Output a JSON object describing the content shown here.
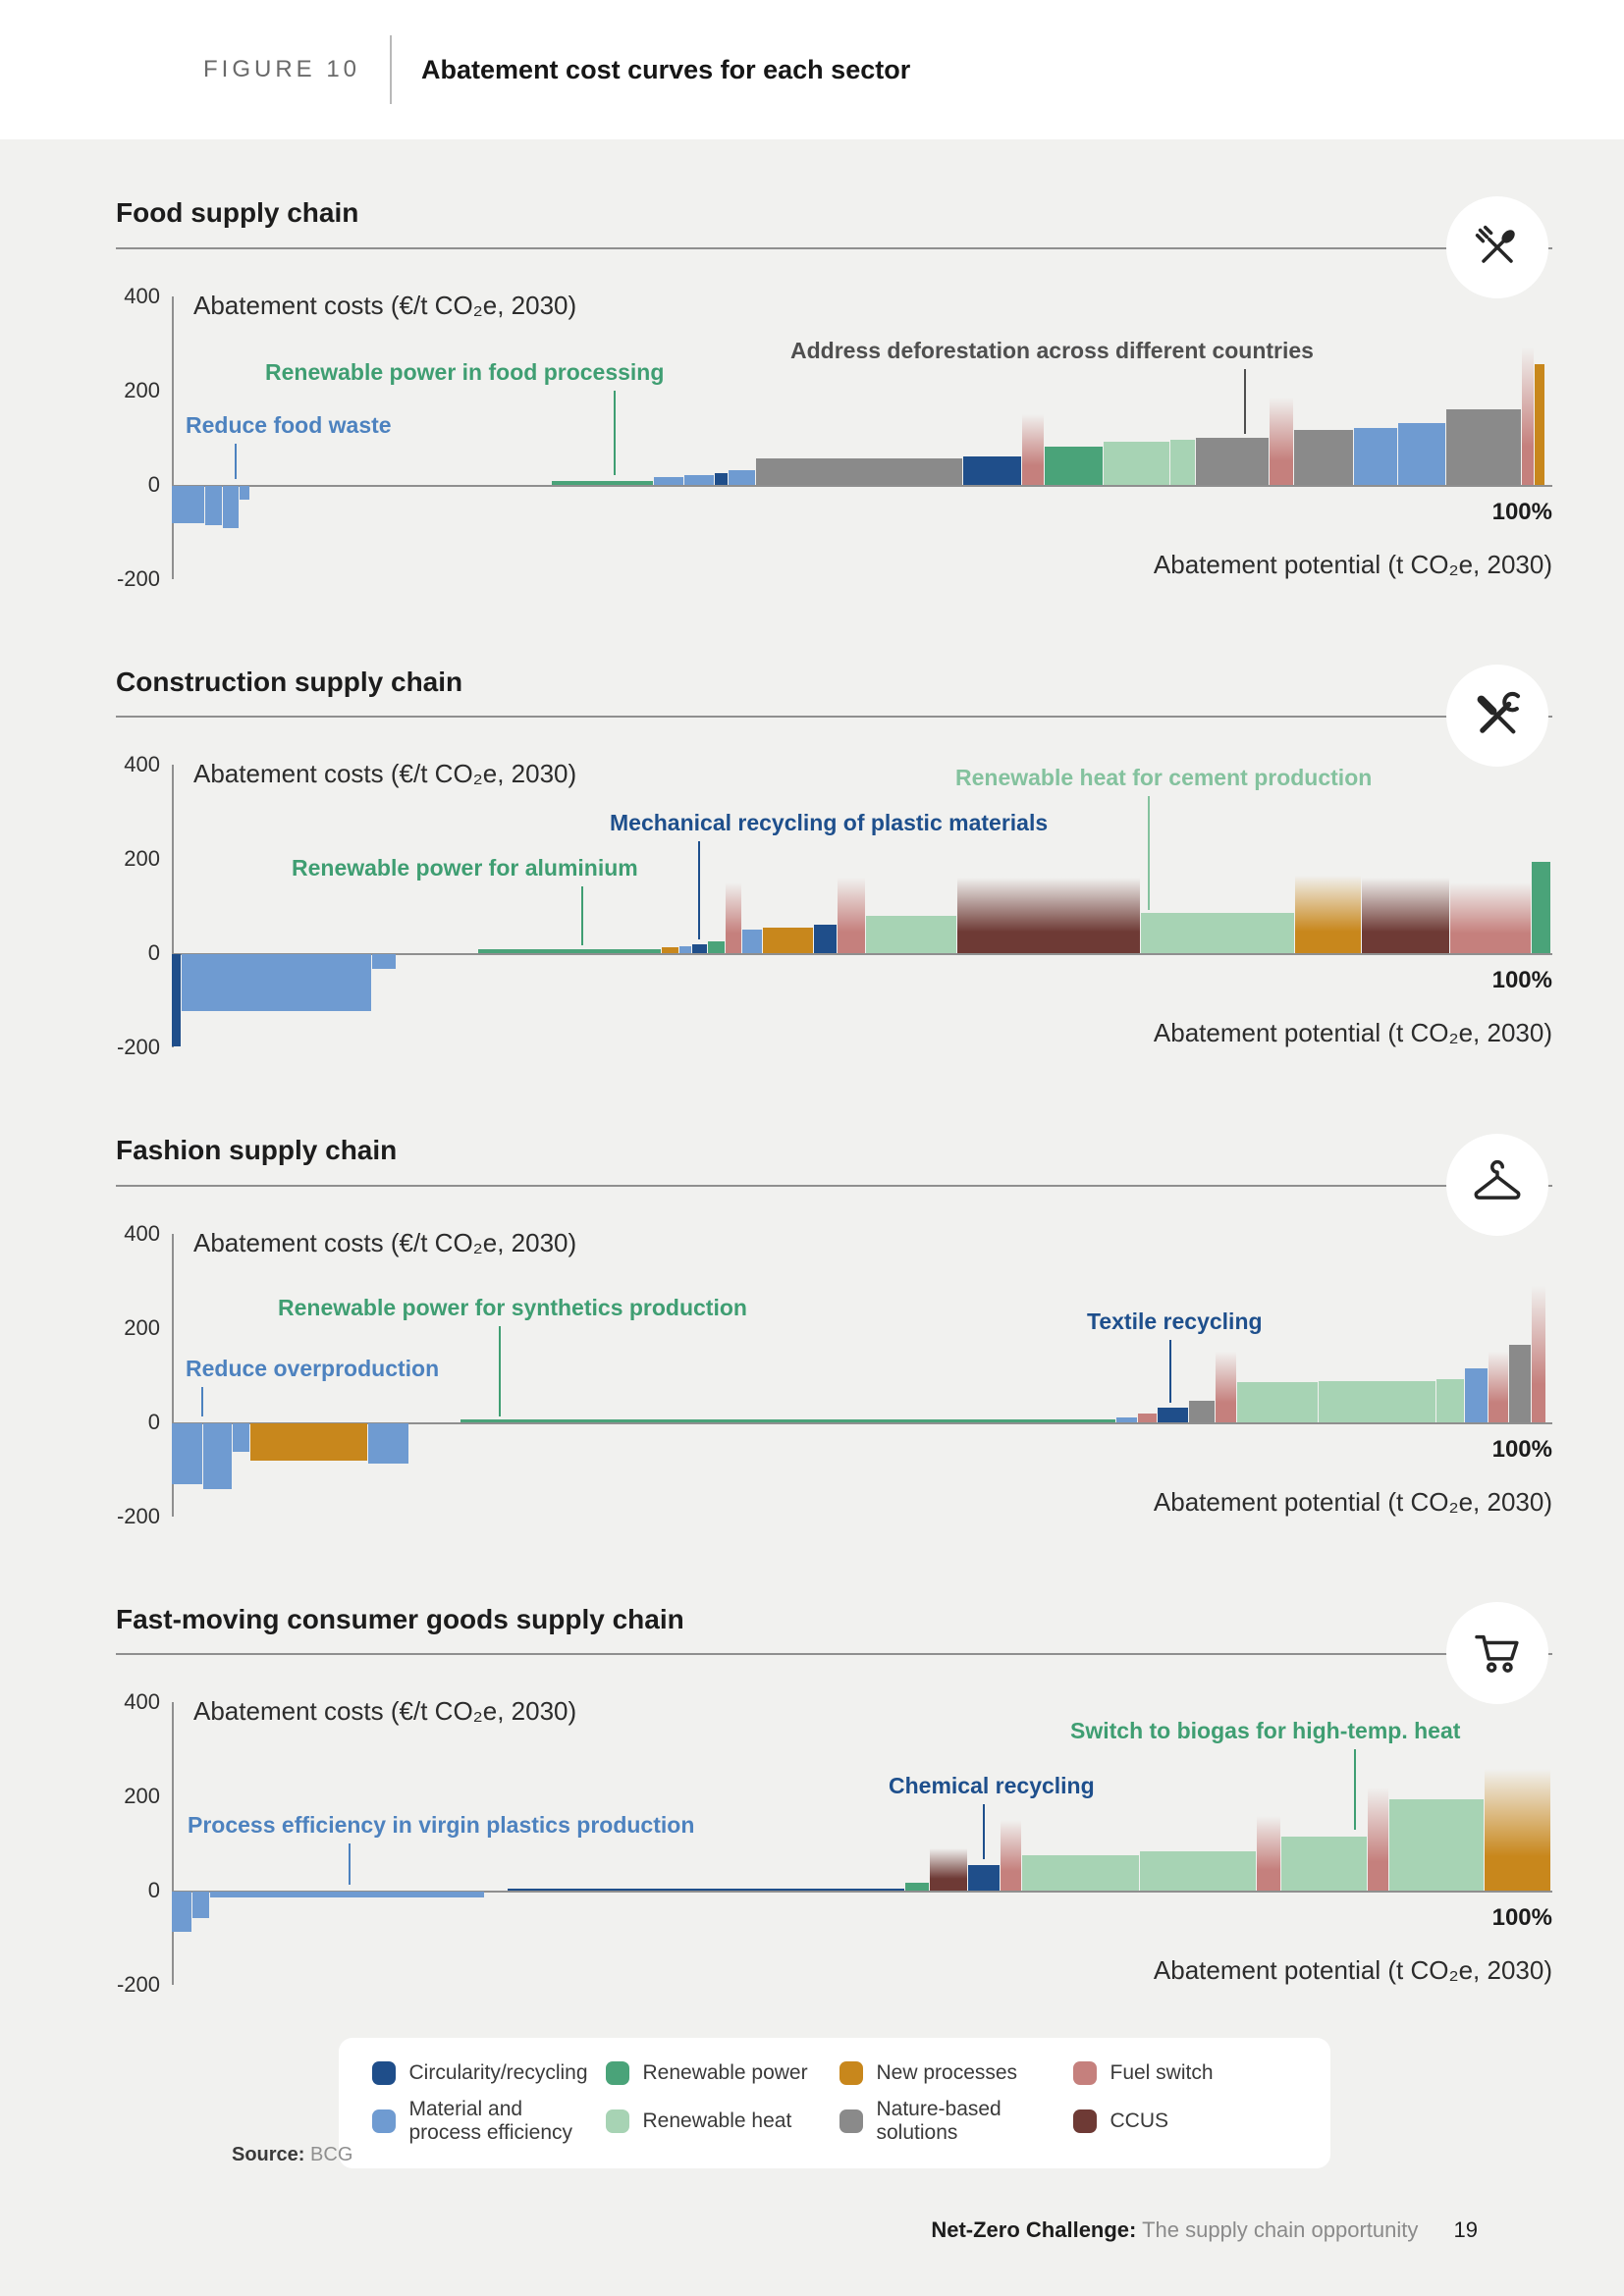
{
  "page": {
    "figure_label": "FIGURE 10",
    "figure_title": "Abatement cost curves for each sector",
    "source_label": "Source:",
    "source_value": "BCG",
    "footer_bold": "Net-Zero Challenge:",
    "footer_text": "The supply chain opportunity",
    "page_number": "19"
  },
  "axis": {
    "y_label": "Abatement costs (€/t CO₂e, 2030)",
    "x_label": "Abatement potential (t CO₂e, 2030)",
    "x_max": "100%",
    "y_ticks": [
      "400",
      "200",
      "0",
      "-200"
    ],
    "ylim": [
      -200,
      400
    ]
  },
  "colors": {
    "circ": "#1f4e8a",
    "matproc": "#6f9bd1",
    "renpower": "#4aa379",
    "renheat": "#a7d3b4",
    "newproc": "#c8871c",
    "nature": "#8a8a8a",
    "fuel": "#c5807d",
    "ccus": "#6e3a35"
  },
  "legend": {
    "items": [
      {
        "key": "circ",
        "label": "Circularity/recycling"
      },
      {
        "key": "renpower",
        "label": "Renewable power"
      },
      {
        "key": "newproc",
        "label": "New processes"
      },
      {
        "key": "fuel",
        "label": "Fuel switch"
      },
      {
        "key": "matproc",
        "label": "Material and\nprocess efficiency"
      },
      {
        "key": "renheat",
        "label": "Renewable heat"
      },
      {
        "key": "nature",
        "label": "Nature-based\nsolutions"
      },
      {
        "key": "ccus",
        "label": "CCUS"
      }
    ]
  },
  "chart_data": [
    {
      "type": "bar",
      "variant": "marginal-abatement-cost-curve",
      "title": "Food supply chain",
      "icon": "food-icon",
      "x_unit": "share of abatement potential (%)",
      "y_unit": "€/t CO₂e (2030)",
      "ylim": [
        -200,
        400
      ],
      "bars": [
        {
          "w": 2.4,
          "v": -80,
          "c": "matproc"
        },
        {
          "w": 1.3,
          "v": -85,
          "c": "matproc"
        },
        {
          "w": 1.2,
          "v": -90,
          "c": "matproc"
        },
        {
          "w": 0.8,
          "v": -30,
          "c": "matproc"
        },
        {
          "w": 21.8,
          "v": 0,
          "c": "gap"
        },
        {
          "w": 7.4,
          "v": 8,
          "c": "renpower"
        },
        {
          "w": 2.2,
          "v": 15,
          "c": "matproc"
        },
        {
          "w": 2.2,
          "v": 20,
          "c": "matproc"
        },
        {
          "w": 1.0,
          "v": 25,
          "c": "circ"
        },
        {
          "w": 2.0,
          "v": 30,
          "c": "matproc"
        },
        {
          "w": 15.0,
          "v": 55,
          "c": "nature"
        },
        {
          "w": 4.3,
          "v": 60,
          "c": "circ"
        },
        {
          "w": 1.6,
          "v": 150,
          "c": "fuel",
          "f": true
        },
        {
          "w": 4.3,
          "v": 80,
          "c": "renpower"
        },
        {
          "w": 4.8,
          "v": 90,
          "c": "renheat"
        },
        {
          "w": 1.9,
          "v": 95,
          "c": "renheat"
        },
        {
          "w": 5.3,
          "v": 100,
          "c": "nature"
        },
        {
          "w": 1.8,
          "v": 185,
          "c": "fuel",
          "f": true
        },
        {
          "w": 4.3,
          "v": 115,
          "c": "nature"
        },
        {
          "w": 3.2,
          "v": 120,
          "c": "matproc"
        },
        {
          "w": 3.5,
          "v": 130,
          "c": "matproc"
        },
        {
          "w": 5.5,
          "v": 160,
          "c": "nature"
        },
        {
          "w": 0.9,
          "v": 290,
          "c": "fuel",
          "f": true
        },
        {
          "w": 0.8,
          "v": 255,
          "c": "newproc"
        }
      ],
      "annotations": [
        {
          "text": "Reduce food waste",
          "color": "#4d82bf",
          "label_x": 14,
          "label_y": 118,
          "line_x": 64,
          "line_y1": 150,
          "line_y2": 186
        },
        {
          "text": "Renewable power in food processing",
          "color": "#3f9e72",
          "label_x": 95,
          "label_y": 64,
          "line_x": 450,
          "line_y1": 96,
          "line_y2": 182
        },
        {
          "text": "Address deforestation across different countries",
          "color": "#4f4f4f",
          "label_x": 630,
          "label_y": 42,
          "line_x": 1092,
          "line_y1": 74,
          "line_y2": 140
        }
      ]
    },
    {
      "type": "bar",
      "variant": "marginal-abatement-cost-curve",
      "title": "Construction supply chain",
      "icon": "construction-icon",
      "x_unit": "share of abatement potential (%)",
      "y_unit": "€/t CO₂e (2030)",
      "ylim": [
        -200,
        400
      ],
      "bars": [
        {
          "w": 0.7,
          "v": -195,
          "c": "circ"
        },
        {
          "w": 13.8,
          "v": -120,
          "c": "matproc"
        },
        {
          "w": 1.8,
          "v": -30,
          "c": "matproc"
        },
        {
          "w": 5.9,
          "v": 0,
          "c": "gap"
        },
        {
          "w": 13.3,
          "v": 8,
          "c": "renpower"
        },
        {
          "w": 1.3,
          "v": 12,
          "c": "newproc"
        },
        {
          "w": 0.9,
          "v": 15,
          "c": "matproc"
        },
        {
          "w": 1.1,
          "v": 20,
          "c": "circ"
        },
        {
          "w": 1.3,
          "v": 25,
          "c": "renpower"
        },
        {
          "w": 1.2,
          "v": 150,
          "c": "fuel",
          "f": true
        },
        {
          "w": 1.5,
          "v": 50,
          "c": "matproc"
        },
        {
          "w": 3.7,
          "v": 55,
          "c": "newproc"
        },
        {
          "w": 1.7,
          "v": 60,
          "c": "circ"
        },
        {
          "w": 2.1,
          "v": 160,
          "c": "fuel",
          "f": true
        },
        {
          "w": 6.6,
          "v": 80,
          "c": "renheat"
        },
        {
          "w": 13.3,
          "v": 160,
          "c": "ccus",
          "f": true
        },
        {
          "w": 11.2,
          "v": 85,
          "c": "renheat"
        },
        {
          "w": 4.8,
          "v": 165,
          "c": "newproc",
          "f": true
        },
        {
          "w": 6.4,
          "v": 160,
          "c": "ccus",
          "f": true
        },
        {
          "w": 5.9,
          "v": 150,
          "c": "fuel",
          "f": true
        },
        {
          "w": 1.4,
          "v": 195,
          "c": "renpower"
        }
      ],
      "annotations": [
        {
          "text": "Renewable power for aluminium",
          "color": "#3f9e72",
          "label_x": 122,
          "label_y": 92,
          "line_x": 417,
          "line_y1": 124,
          "line_y2": 184
        },
        {
          "text": "Mechanical recycling of plastic materials",
          "color": "#1e4f8c",
          "label_x": 446,
          "label_y": 46,
          "line_x": 536,
          "line_y1": 78,
          "line_y2": 178
        },
        {
          "text": "Renewable heat for cement production",
          "color": "#84c29e",
          "label_x": 798,
          "label_y": 0,
          "line_x": 994,
          "line_y1": 32,
          "line_y2": 148
        }
      ]
    },
    {
      "type": "bar",
      "variant": "marginal-abatement-cost-curve",
      "title": "Fashion supply chain",
      "icon": "fashion-icon",
      "x_unit": "share of abatement potential (%)",
      "y_unit": "€/t CO₂e (2030)",
      "ylim": [
        -200,
        400
      ],
      "bars": [
        {
          "w": 2.3,
          "v": -130,
          "c": "matproc"
        },
        {
          "w": 2.1,
          "v": -140,
          "c": "matproc"
        },
        {
          "w": 1.3,
          "v": -60,
          "c": "matproc"
        },
        {
          "w": 8.5,
          "v": -80,
          "c": "newproc"
        },
        {
          "w": 3.0,
          "v": -85,
          "c": "matproc"
        },
        {
          "w": 3.7,
          "v": 0,
          "c": "gap"
        },
        {
          "w": 47.5,
          "v": 5,
          "c": "renpower"
        },
        {
          "w": 1.6,
          "v": 10,
          "c": "matproc"
        },
        {
          "w": 1.4,
          "v": 18,
          "c": "fuel"
        },
        {
          "w": 2.3,
          "v": 30,
          "c": "circ"
        },
        {
          "w": 1.9,
          "v": 45,
          "c": "nature"
        },
        {
          "w": 1.6,
          "v": 150,
          "c": "fuel",
          "f": true
        },
        {
          "w": 5.9,
          "v": 85,
          "c": "renheat"
        },
        {
          "w": 8.5,
          "v": 88,
          "c": "renheat"
        },
        {
          "w": 2.1,
          "v": 92,
          "c": "renheat"
        },
        {
          "w": 1.7,
          "v": 115,
          "c": "matproc"
        },
        {
          "w": 1.5,
          "v": 150,
          "c": "fuel",
          "f": true
        },
        {
          "w": 1.6,
          "v": 165,
          "c": "nature"
        },
        {
          "w": 1.1,
          "v": 290,
          "c": "fuel",
          "f": true
        }
      ],
      "annotations": [
        {
          "text": "Reduce overproduction",
          "color": "#4d82bf",
          "label_x": 14,
          "label_y": 124,
          "line_x": 30,
          "line_y1": 156,
          "line_y2": 186
        },
        {
          "text": "Renewable power for synthetics production",
          "color": "#3f9e72",
          "label_x": 108,
          "label_y": 62,
          "line_x": 333,
          "line_y1": 94,
          "line_y2": 186
        },
        {
          "text": "Textile recycling",
          "color": "#1e4f8c",
          "label_x": 932,
          "label_y": 76,
          "line_x": 1016,
          "line_y1": 108,
          "line_y2": 172
        }
      ]
    },
    {
      "type": "bar",
      "variant": "marginal-abatement-cost-curve",
      "title": "Fast-moving consumer goods supply chain",
      "icon": "fmcg-icon",
      "x_unit": "share of abatement potential (%)",
      "y_unit": "€/t CO₂e (2030)",
      "ylim": [
        -200,
        400
      ],
      "bars": [
        {
          "w": 1.5,
          "v": -85,
          "c": "matproc"
        },
        {
          "w": 1.3,
          "v": -55,
          "c": "matproc"
        },
        {
          "w": 19.9,
          "v": -12,
          "c": "matproc"
        },
        {
          "w": 1.6,
          "v": 0,
          "c": "gap"
        },
        {
          "w": 28.8,
          "v": 6,
          "c": "circ"
        },
        {
          "w": 1.8,
          "v": 18,
          "c": "renpower"
        },
        {
          "w": 2.8,
          "v": 90,
          "c": "ccus",
          "f": true
        },
        {
          "w": 2.3,
          "v": 55,
          "c": "circ"
        },
        {
          "w": 1.6,
          "v": 150,
          "c": "fuel",
          "f": true
        },
        {
          "w": 8.5,
          "v": 75,
          "c": "renheat"
        },
        {
          "w": 8.5,
          "v": 85,
          "c": "renheat"
        },
        {
          "w": 1.8,
          "v": 160,
          "c": "fuel",
          "f": true
        },
        {
          "w": 6.2,
          "v": 115,
          "c": "renheat"
        },
        {
          "w": 1.6,
          "v": 220,
          "c": "fuel",
          "f": true
        },
        {
          "w": 6.9,
          "v": 195,
          "c": "renheat"
        },
        {
          "w": 4.8,
          "v": 260,
          "c": "newproc",
          "f": true
        }
      ],
      "annotations": [
        {
          "text": "Process efficiency in virgin plastics production",
          "color": "#4d82bf",
          "label_x": 16,
          "label_y": 112,
          "line_x": 180,
          "line_y1": 144,
          "line_y2": 186
        },
        {
          "text": "Chemical recycling",
          "color": "#1e4f8c",
          "label_x": 730,
          "label_y": 72,
          "line_x": 826,
          "line_y1": 104,
          "line_y2": 160
        },
        {
          "text": "Switch to biogas for high-temp. heat",
          "color": "#3f9e72",
          "label_x": 915,
          "label_y": 16,
          "line_x": 1204,
          "line_y1": 48,
          "line_y2": 130
        }
      ]
    }
  ]
}
